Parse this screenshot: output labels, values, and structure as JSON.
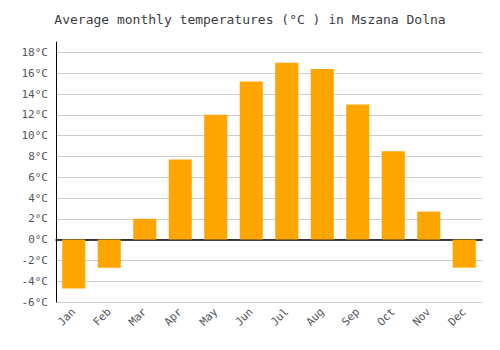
{
  "chart_data": {
    "type": "bar",
    "title": "Average monthly temperatures (°C ) in Mszana Dolna",
    "categories": [
      "Jan",
      "Feb",
      "Mar",
      "Apr",
      "May",
      "Jun",
      "Jul",
      "Aug",
      "Sep",
      "Oct",
      "Nov",
      "Dec"
    ],
    "values": [
      -4.7,
      -2.7,
      2.0,
      7.7,
      12.0,
      15.2,
      17.0,
      16.4,
      13.0,
      8.5,
      2.7,
      -2.7
    ],
    "color": "#FFA500",
    "ylim": [
      -6,
      19
    ],
    "yticks": [
      {
        "value": -6,
        "label": "-6°C"
      },
      {
        "value": -4,
        "label": "-4°C"
      },
      {
        "value": -2,
        "label": "-2°C"
      },
      {
        "value": 0,
        "label": "0°C"
      },
      {
        "value": 2,
        "label": "2°C"
      },
      {
        "value": 4,
        "label": "4°C"
      },
      {
        "value": 6,
        "label": "6°C"
      },
      {
        "value": 8,
        "label": "8°C"
      },
      {
        "value": 10,
        "label": "10°C"
      },
      {
        "value": 12,
        "label": "12°C"
      },
      {
        "value": 14,
        "label": "14°C"
      },
      {
        "value": 16,
        "label": "16°C"
      },
      {
        "value": 18,
        "label": "18°C"
      }
    ],
    "grid": true
  }
}
